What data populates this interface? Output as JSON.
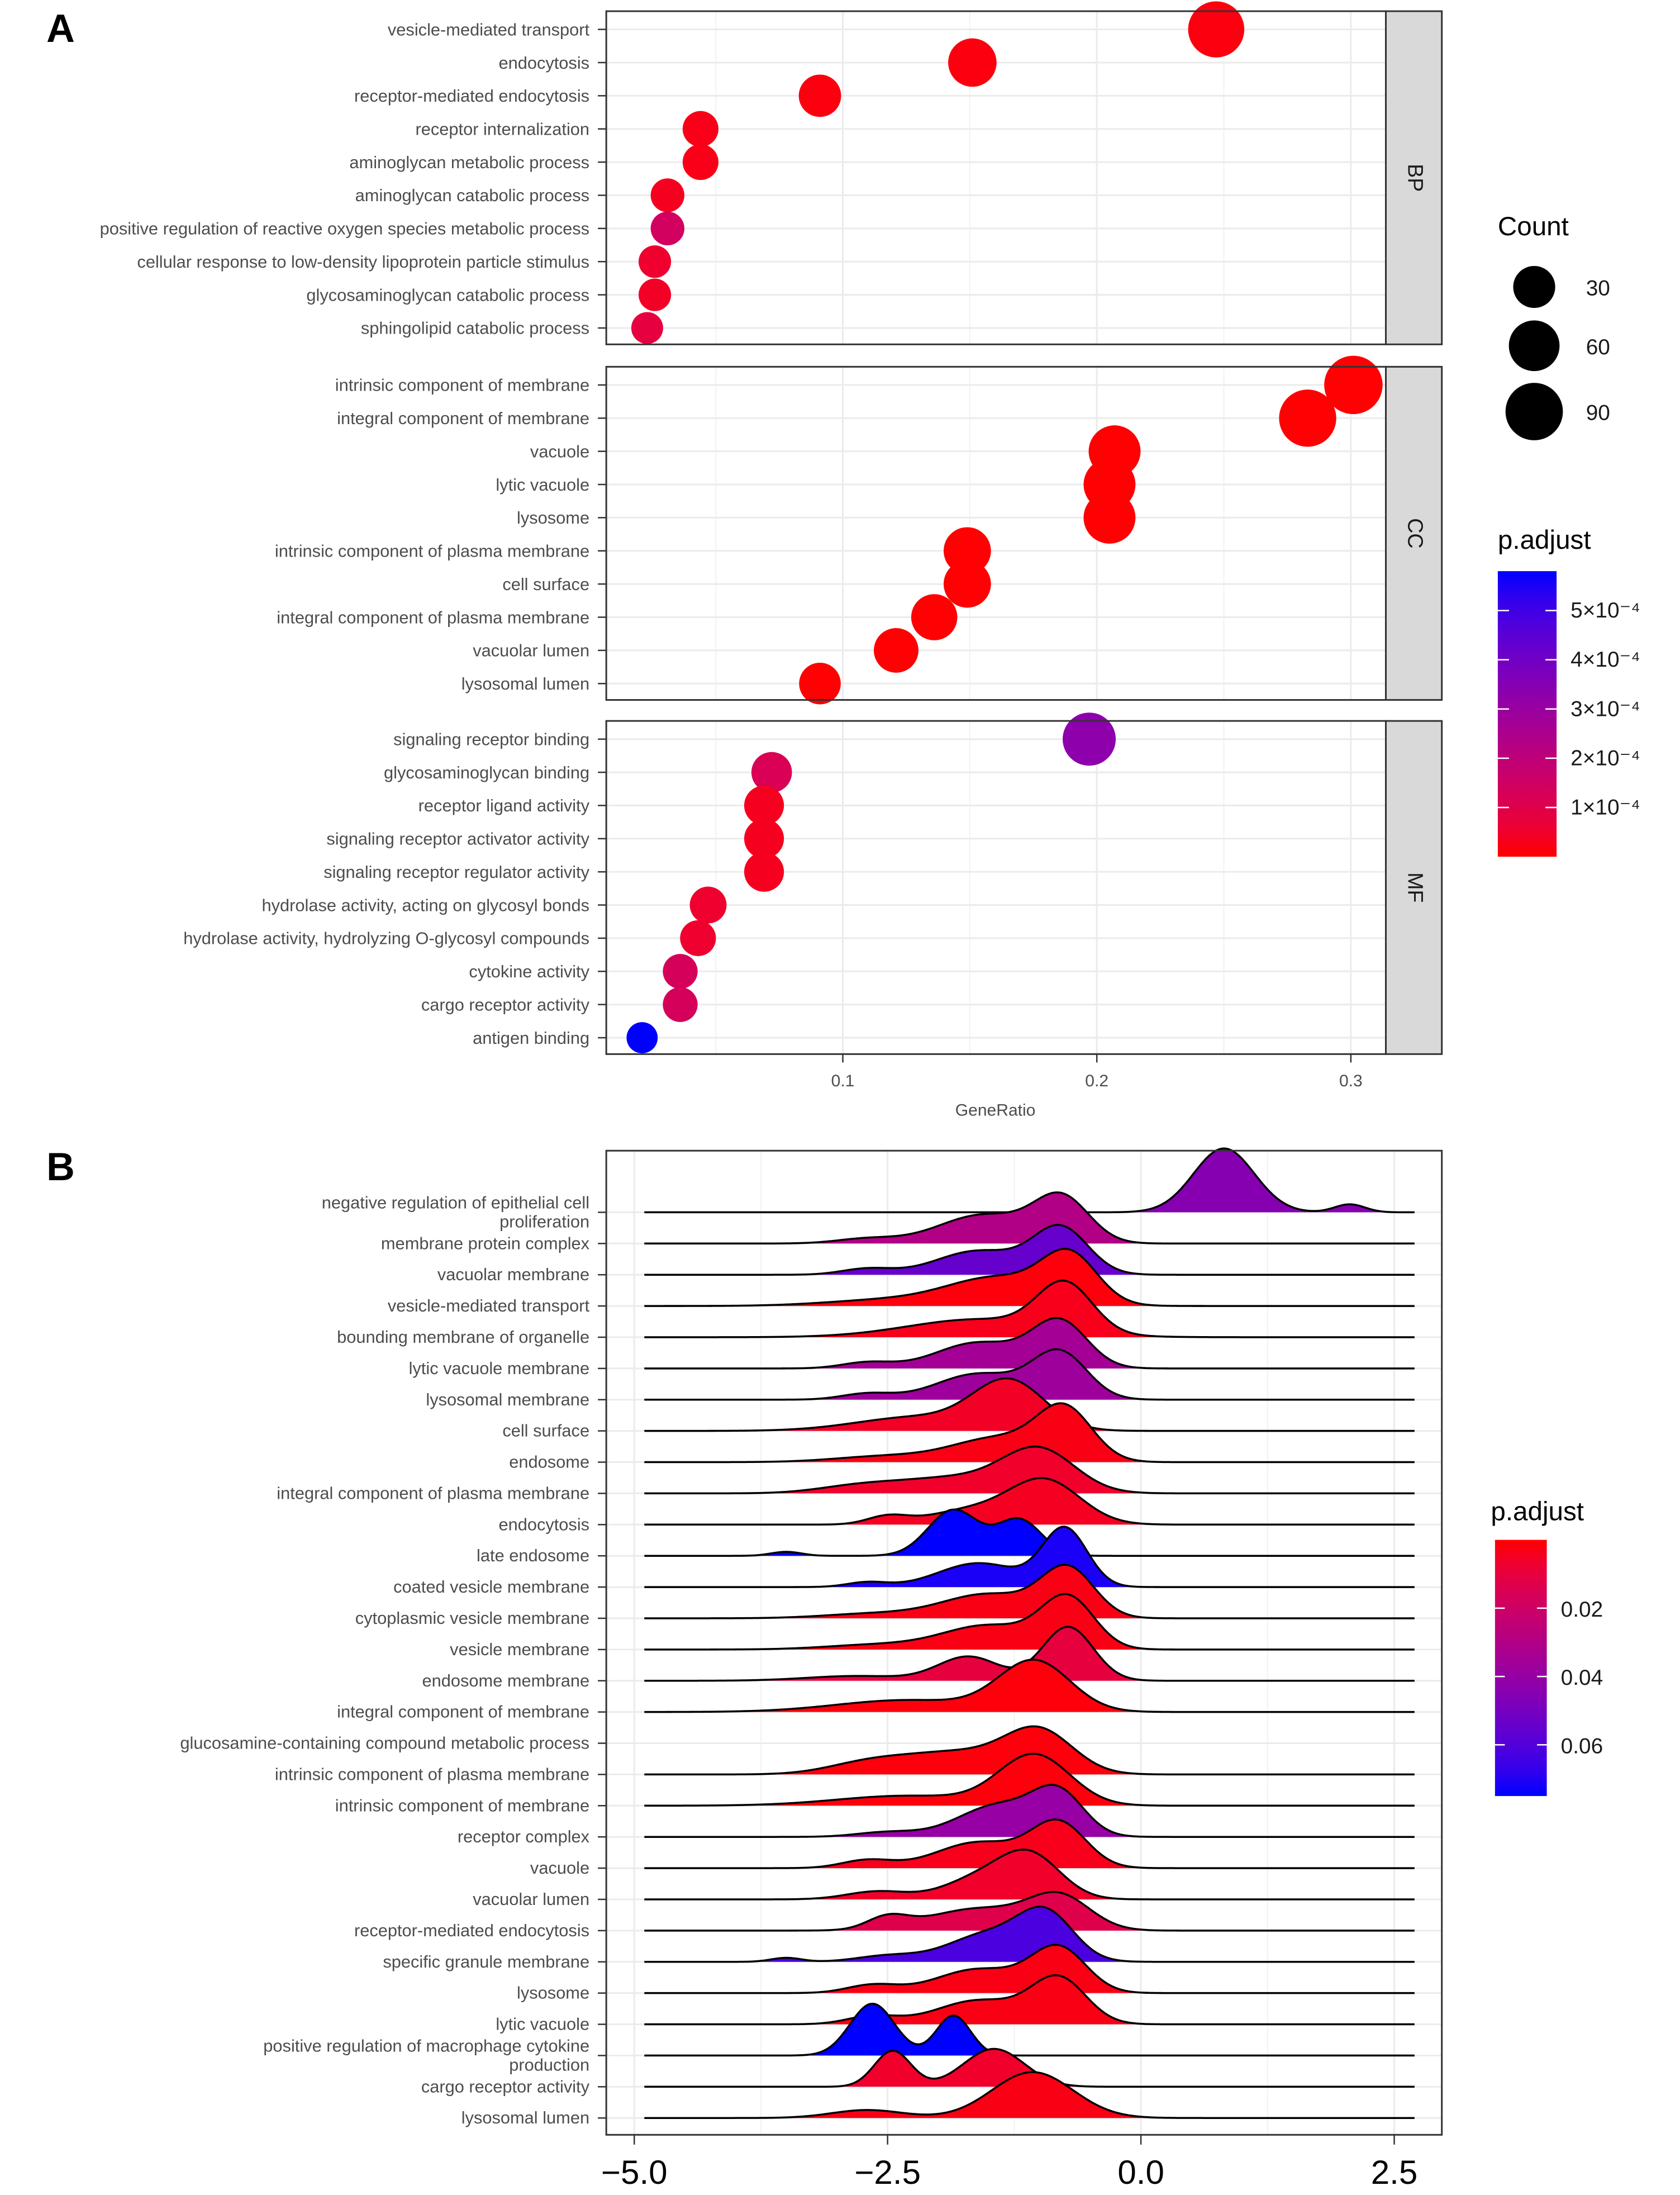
{
  "chart_data": [
    {
      "type": "scatter",
      "panel_label": "A",
      "xlabel": "GeneRatio",
      "xlim": [
        0.0069,
        0.3137
      ],
      "x_ticks": [
        "0.1",
        "0.2",
        "0.3"
      ],
      "x_tick_values": [
        0.1,
        0.2,
        0.3
      ],
      "size_legend": {
        "title": "Count",
        "values": [
          30,
          60,
          90
        ],
        "labels": [
          "30",
          "60",
          "90"
        ]
      },
      "color_legend": {
        "title": "p.adjust",
        "range": [
          0,
          0.00058
        ],
        "low_color": "#ff0000",
        "high_color": "#0000ff",
        "tick_values": [
          0.0005,
          0.0004,
          0.0003,
          0.0002,
          0.0001
        ],
        "tick_labels": [
          "5×10⁻⁴",
          "4×10⁻⁴",
          "3×10⁻⁴",
          "2×10⁻⁴",
          "1×10⁻⁴"
        ]
      },
      "facets": [
        {
          "name": "BP",
          "terms": [
            {
              "term": "vesicle-mediated transport",
              "gene_ratio": 0.247,
              "count": 84,
              "p_adjust": 1e-05
            },
            {
              "term": "endocytosis",
              "gene_ratio": 0.151,
              "count": 51,
              "p_adjust": 1e-05
            },
            {
              "term": "receptor-mediated endocytosis",
              "gene_ratio": 0.091,
              "count": 31,
              "p_adjust": 1e-05
            },
            {
              "term": "receptor internalization",
              "gene_ratio": 0.044,
              "count": 15,
              "p_adjust": 2e-05
            },
            {
              "term": "aminoglycan metabolic process",
              "gene_ratio": 0.044,
              "count": 15,
              "p_adjust": 2e-05
            },
            {
              "term": "aminoglycan catabolic process",
              "gene_ratio": 0.031,
              "count": 11,
              "p_adjust": 3e-05
            },
            {
              "term": "positive regulation of reactive oxygen species metabolic process",
              "gene_ratio": 0.031,
              "count": 11,
              "p_adjust": 0.00014
            },
            {
              "term": "cellular response to low-density lipoprotein particle stimulus",
              "gene_ratio": 0.026,
              "count": 9,
              "p_adjust": 5e-05
            },
            {
              "term": "glycosaminoglycan catabolic process",
              "gene_ratio": 0.026,
              "count": 9,
              "p_adjust": 4e-05
            },
            {
              "term": "sphingolipid catabolic process",
              "gene_ratio": 0.023,
              "count": 8,
              "p_adjust": 8e-05
            }
          ]
        },
        {
          "name": "CC",
          "terms": [
            {
              "term": "intrinsic component of membrane",
              "gene_ratio": 0.301,
              "count": 95,
              "p_adjust": 1e-06
            },
            {
              "term": "integral component of membrane",
              "gene_ratio": 0.283,
              "count": 89,
              "p_adjust": 1e-06
            },
            {
              "term": "vacuole",
              "gene_ratio": 0.207,
              "count": 65,
              "p_adjust": 1e-06
            },
            {
              "term": "lytic vacuole",
              "gene_ratio": 0.205,
              "count": 65,
              "p_adjust": 1e-06
            },
            {
              "term": "lysosome",
              "gene_ratio": 0.205,
              "count": 65,
              "p_adjust": 1e-06
            },
            {
              "term": "intrinsic component of plasma membrane",
              "gene_ratio": 0.149,
              "count": 47,
              "p_adjust": 1e-06
            },
            {
              "term": "cell surface",
              "gene_ratio": 0.149,
              "count": 47,
              "p_adjust": 1e-06
            },
            {
              "term": "integral component of plasma membrane",
              "gene_ratio": 0.136,
              "count": 43,
              "p_adjust": 1e-06
            },
            {
              "term": "vacuolar lumen",
              "gene_ratio": 0.121,
              "count": 38,
              "p_adjust": 1e-06
            },
            {
              "term": "lysosomal lumen",
              "gene_ratio": 0.091,
              "count": 29,
              "p_adjust": 1e-06
            }
          ]
        },
        {
          "name": "MF",
          "terms": [
            {
              "term": "signaling receptor binding",
              "gene_ratio": 0.197,
              "count": 70,
              "p_adjust": 0.00033
            },
            {
              "term": "glycosaminoglycan binding",
              "gene_ratio": 0.072,
              "count": 26,
              "p_adjust": 0.00012
            },
            {
              "term": "receptor ligand activity",
              "gene_ratio": 0.069,
              "count": 24,
              "p_adjust": 3e-05
            },
            {
              "term": "signaling receptor activator activity",
              "gene_ratio": 0.069,
              "count": 24,
              "p_adjust": 3e-05
            },
            {
              "term": "signaling receptor regulator activity",
              "gene_ratio": 0.069,
              "count": 24,
              "p_adjust": 3e-05
            },
            {
              "term": "hydrolase activity, acting on glycosyl bonds",
              "gene_ratio": 0.047,
              "count": 17,
              "p_adjust": 5e-05
            },
            {
              "term": "hydrolase activity, hydrolyzing O-glycosyl compounds",
              "gene_ratio": 0.043,
              "count": 15,
              "p_adjust": 5e-05
            },
            {
              "term": "cytokine activity",
              "gene_ratio": 0.036,
              "count": 13,
              "p_adjust": 0.00013
            },
            {
              "term": "cargo receptor activity",
              "gene_ratio": 0.036,
              "count": 13,
              "p_adjust": 0.00013
            },
            {
              "term": "antigen binding",
              "gene_ratio": 0.021,
              "count": 7,
              "p_adjust": 0.00058
            }
          ]
        }
      ]
    },
    {
      "type": "ridgeline",
      "panel_label": "B",
      "xlim": [
        -5.3,
        2.95
      ],
      "x_ticks": [
        "−5.0",
        "−2.5",
        "0.0",
        "2.5"
      ],
      "x_tick_values": [
        -5.0,
        -2.5,
        0.0,
        2.5
      ],
      "line_range": [
        -4.9,
        2.7
      ],
      "color_legend": {
        "title": "p.adjust",
        "range": [
          0,
          0.075
        ],
        "low_color": "#ff0000",
        "high_color": "#0000ff",
        "tick_values": [
          0.02,
          0.04,
          0.06
        ],
        "tick_labels": [
          "0.02",
          "0.04",
          "0.06"
        ]
      },
      "component_format": [
        "mean",
        "sd",
        "relative_density"
      ],
      "rows": [
        {
          "term": [
            "negative regulation of epithelial cell",
            "proliferation"
          ],
          "p_adjust": 0.045,
          "components": [
            [
              0.82,
              0.3,
              1.6
            ],
            [
              2.06,
              0.15,
              0.2
            ]
          ]
        },
        {
          "term": [
            "membrane protein complex"
          ],
          "p_adjust": 0.03,
          "components": [
            [
              -0.78,
              0.27,
              1.1
            ],
            [
              -1.55,
              0.45,
              0.72
            ],
            [
              -2.7,
              0.3,
              0.12
            ]
          ]
        },
        {
          "term": [
            "vacuolar membrane"
          ],
          "p_adjust": 0.055,
          "components": [
            [
              -0.79,
              0.27,
              1.15
            ],
            [
              -1.6,
              0.42,
              0.6
            ],
            [
              -2.7,
              0.25,
              0.15
            ]
          ]
        },
        {
          "term": [
            "vesicle-mediated transport"
          ],
          "p_adjust": 0.001,
          "components": [
            [
              -0.7,
              0.27,
              1.15
            ],
            [
              -1.4,
              0.5,
              0.7
            ],
            [
              -2.5,
              0.6,
              0.15
            ]
          ]
        },
        {
          "term": [
            "bounding membrane of organelle"
          ],
          "p_adjust": 0.003,
          "components": [
            [
              -0.75,
              0.27,
              1.2
            ],
            [
              -1.6,
              0.7,
              0.45
            ]
          ]
        },
        {
          "term": [
            "lytic vacuole membrane"
          ],
          "p_adjust": 0.035,
          "components": [
            [
              -0.8,
              0.27,
              1.15
            ],
            [
              -1.6,
              0.42,
              0.65
            ],
            [
              -2.7,
              0.25,
              0.15
            ]
          ]
        },
        {
          "term": [
            "lysosomal membrane"
          ],
          "p_adjust": 0.037,
          "components": [
            [
              -0.8,
              0.27,
              1.15
            ],
            [
              -1.6,
              0.42,
              0.65
            ],
            [
              -2.7,
              0.25,
              0.15
            ]
          ]
        },
        {
          "term": [
            "cell surface"
          ],
          "p_adjust": 0.005,
          "components": [
            [
              -1.3,
              0.35,
              1.2
            ],
            [
              -2.2,
              0.6,
              0.35
            ]
          ]
        },
        {
          "term": [
            "endosome"
          ],
          "p_adjust": 0.002,
          "components": [
            [
              -0.75,
              0.27,
              1.25
            ],
            [
              -1.4,
              0.45,
              0.6
            ],
            [
              -2.5,
              0.5,
              0.15
            ]
          ]
        },
        {
          "term": [
            "integral component of plasma membrane"
          ],
          "p_adjust": 0.006,
          "components": [
            [
              -1.0,
              0.35,
              1.0
            ],
            [
              -1.8,
              0.6,
              0.4
            ],
            [
              -2.8,
              0.4,
              0.15
            ]
          ]
        },
        {
          "term": [
            "endocytosis"
          ],
          "p_adjust": 0.004,
          "components": [
            [
              -0.95,
              0.35,
              1.1
            ],
            [
              -1.7,
              0.4,
              0.35
            ],
            [
              -2.5,
              0.2,
              0.2
            ]
          ]
        },
        {
          "term": [
            "late endosome"
          ],
          "p_adjust": 0.075,
          "components": [
            [
              -1.85,
              0.25,
              1.15
            ],
            [
              -1.2,
              0.22,
              0.9
            ],
            [
              -3.5,
              0.15,
              0.1
            ]
          ]
        },
        {
          "term": [
            "coated vesicle membrane"
          ],
          "p_adjust": 0.072,
          "components": [
            [
              -0.75,
              0.22,
              1.45
            ],
            [
              -1.6,
              0.4,
              0.6
            ],
            [
              -2.7,
              0.2,
              0.12
            ]
          ]
        },
        {
          "term": [
            "cytoplasmic vesicle membrane"
          ],
          "p_adjust": 0.002,
          "components": [
            [
              -0.72,
              0.26,
              1.2
            ],
            [
              -1.5,
              0.45,
              0.6
            ],
            [
              -2.6,
              0.5,
              0.12
            ]
          ]
        },
        {
          "term": [
            "vesicle membrane"
          ],
          "p_adjust": 0.002,
          "components": [
            [
              -0.72,
              0.26,
              1.25
            ],
            [
              -1.5,
              0.45,
              0.6
            ],
            [
              -2.6,
              0.5,
              0.12
            ]
          ]
        },
        {
          "term": [
            "endosome membrane"
          ],
          "p_adjust": 0.01,
          "components": [
            [
              -0.72,
              0.25,
              1.35
            ],
            [
              -1.7,
              0.3,
              0.6
            ],
            [
              -2.8,
              0.5,
              0.12
            ]
          ]
        },
        {
          "term": [
            "integral component of membrane"
          ],
          "p_adjust": 0.001,
          "components": [
            [
              -1.05,
              0.35,
              1.25
            ],
            [
              -2.3,
              0.7,
              0.3
            ]
          ]
        },
        {
          "term": [
            "glucosamine-containing compound metabolic process"
          ],
          "p_adjust": null,
          "components": []
        },
        {
          "term": [
            "intrinsic component of plasma membrane"
          ],
          "p_adjust": 0.001,
          "components": [
            [
              -1.0,
              0.33,
              1.0
            ],
            [
              -1.8,
              0.55,
              0.55
            ],
            [
              -2.7,
              0.4,
              0.25
            ]
          ]
        },
        {
          "term": [
            "intrinsic component of membrane"
          ],
          "p_adjust": 0.001,
          "components": [
            [
              -1.05,
              0.35,
              1.25
            ],
            [
              -2.3,
              0.7,
              0.25
            ]
          ]
        },
        {
          "term": [
            "receptor complex"
          ],
          "p_adjust": 0.04,
          "components": [
            [
              -0.81,
              0.25,
              1.0
            ],
            [
              -1.4,
              0.4,
              0.8
            ],
            [
              -2.5,
              0.3,
              0.12
            ]
          ]
        },
        {
          "term": [
            "vacuole"
          ],
          "p_adjust": 0.003,
          "components": [
            [
              -0.81,
              0.27,
              1.1
            ],
            [
              -1.6,
              0.42,
              0.65
            ],
            [
              -2.7,
              0.25,
              0.2
            ]
          ]
        },
        {
          "term": [
            "vacuolar lumen"
          ],
          "p_adjust": 0.006,
          "components": [
            [
              -1.09,
              0.3,
              1.05
            ],
            [
              -1.6,
              0.35,
              0.5
            ],
            [
              -2.6,
              0.3,
              0.2
            ]
          ]
        },
        {
          "term": [
            "receptor-mediated endocytosis"
          ],
          "p_adjust": 0.013,
          "components": [
            [
              -0.8,
              0.3,
              0.8
            ],
            [
              -1.6,
              0.5,
              0.55
            ],
            [
              -2.5,
              0.2,
              0.3
            ]
          ]
        },
        {
          "term": [
            "specific granule membrane"
          ],
          "p_adjust": 0.062,
          "components": [
            [
              -0.93,
              0.27,
              1.1
            ],
            [
              -1.5,
              0.4,
              0.7
            ],
            [
              -2.5,
              0.3,
              0.15
            ],
            [
              -3.5,
              0.15,
              0.1
            ]
          ]
        },
        {
          "term": [
            "lysosome"
          ],
          "p_adjust": 0.002,
          "components": [
            [
              -0.81,
              0.27,
              1.1
            ],
            [
              -1.6,
              0.42,
              0.6
            ],
            [
              -2.65,
              0.25,
              0.2
            ]
          ]
        },
        {
          "term": [
            "lytic vacuole"
          ],
          "p_adjust": 0.002,
          "components": [
            [
              -0.81,
              0.27,
              1.12
            ],
            [
              -1.6,
              0.42,
              0.6
            ],
            [
              -2.65,
              0.25,
              0.2
            ]
          ]
        },
        {
          "term": [
            "positive regulation of macrophage cytokine",
            "production"
          ],
          "p_adjust": 0.075,
          "components": [
            [
              -2.65,
              0.22,
              1.3
            ],
            [
              -1.85,
              0.17,
              1.0
            ]
          ]
        },
        {
          "term": [
            "cargo receptor activity"
          ],
          "p_adjust": 0.006,
          "components": [
            [
              -2.45,
              0.18,
              0.9
            ],
            [
              -1.45,
              0.3,
              0.95
            ]
          ]
        },
        {
          "term": [
            "lysosomal lumen"
          ],
          "p_adjust": 0.002,
          "components": [
            [
              -1.07,
              0.4,
              1.15
            ],
            [
              -2.7,
              0.35,
              0.2
            ]
          ]
        }
      ]
    }
  ]
}
